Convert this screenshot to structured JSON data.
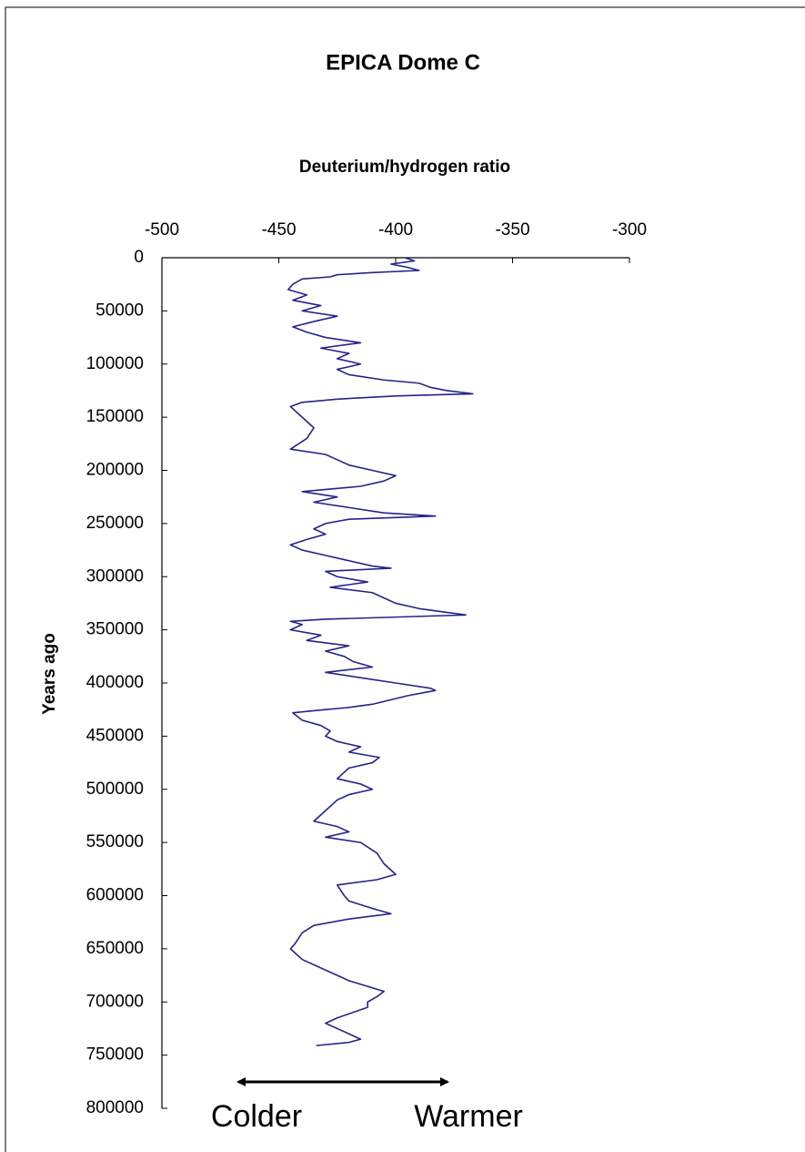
{
  "chart_data": {
    "type": "line",
    "orientation": "horizontal",
    "y_inverted": true,
    "title": "EPICA Dome C",
    "ylabel_top": "Deuterium/hydrogen ratio",
    "xlabel": "Years ago",
    "annotations": [
      "Colder",
      "Warmer"
    ],
    "ylim": [
      -500,
      -300
    ],
    "yticks": [
      -500,
      -450,
      -400,
      -350,
      -300
    ],
    "xlim": [
      0,
      800000
    ],
    "xticks": [
      0,
      50000,
      100000,
      150000,
      200000,
      250000,
      300000,
      350000,
      400000,
      450000,
      500000,
      550000,
      600000,
      650000,
      700000,
      750000,
      800000
    ],
    "x": [
      0,
      3000,
      6000,
      9000,
      12000,
      14000,
      16000,
      18000,
      20000,
      25000,
      30000,
      35000,
      40000,
      45000,
      50000,
      55000,
      60000,
      65000,
      70000,
      75000,
      80000,
      85000,
      90000,
      95000,
      100000,
      105000,
      110000,
      115000,
      118000,
      122000,
      125000,
      128000,
      130000,
      133000,
      136000,
      140000,
      150000,
      160000,
      170000,
      180000,
      185000,
      190000,
      195000,
      200000,
      205000,
      210000,
      215000,
      220000,
      225000,
      230000,
      235000,
      240000,
      243000,
      246000,
      250000,
      255000,
      260000,
      265000,
      270000,
      275000,
      280000,
      285000,
      290000,
      292000,
      295000,
      300000,
      305000,
      310000,
      315000,
      320000,
      325000,
      330000,
      333000,
      336000,
      340000,
      342000,
      345000,
      350000,
      355000,
      360000,
      365000,
      370000,
      375000,
      380000,
      385000,
      390000,
      395000,
      400000,
      405000,
      407000,
      412000,
      420000,
      423000,
      425000,
      428000,
      435000,
      440000,
      445000,
      450000,
      455000,
      460000,
      465000,
      470000,
      475000,
      480000,
      490000,
      495000,
      500000,
      505000,
      510000,
      520000,
      530000,
      535000,
      540000,
      545000,
      550000,
      560000,
      570000,
      580000,
      585000,
      590000,
      600000,
      605000,
      612000,
      617000,
      622000,
      628000,
      635000,
      645000,
      650000,
      660000,
      670000,
      680000,
      690000,
      695000,
      700000,
      705000,
      715000,
      720000,
      725000,
      730000,
      735000,
      738000,
      741000
    ],
    "series": [
      {
        "name": "Deuterium/hydrogen ratio",
        "color": "#23238c",
        "values": [
          -396,
          -392,
          -402,
          -395,
          -390,
          -410,
          -425,
          -428,
          -440,
          -444,
          -446,
          -438,
          -444,
          -432,
          -440,
          -425,
          -435,
          -444,
          -438,
          -430,
          -415,
          -432,
          -420,
          -425,
          -415,
          -425,
          -420,
          -405,
          -390,
          -385,
          -378,
          -367,
          -400,
          -425,
          -440,
          -445,
          -440,
          -435,
          -438,
          -445,
          -430,
          -425,
          -420,
          -410,
          -400,
          -405,
          -415,
          -440,
          -425,
          -435,
          -420,
          -405,
          -383,
          -420,
          -430,
          -435,
          -430,
          -438,
          -445,
          -440,
          -430,
          -420,
          -410,
          -402,
          -430,
          -425,
          -412,
          -428,
          -410,
          -405,
          -400,
          -390,
          -380,
          -370,
          -430,
          -445,
          -440,
          -445,
          -432,
          -438,
          -420,
          -430,
          -422,
          -418,
          -410,
          -430,
          -415,
          -400,
          -385,
          -383,
          -395,
          -410,
          -420,
          -430,
          -444,
          -440,
          -432,
          -428,
          -430,
          -425,
          -415,
          -420,
          -407,
          -410,
          -420,
          -425,
          -415,
          -410,
          -420,
          -425,
          -430,
          -435,
          -425,
          -420,
          -430,
          -415,
          -408,
          -405,
          -400,
          -408,
          -425,
          -422,
          -420,
          -410,
          -402,
          -420,
          -435,
          -440,
          -443,
          -445,
          -440,
          -430,
          -420,
          -405,
          -408,
          -412,
          -412,
          -425,
          -430,
          -425,
          -420,
          -415,
          -420,
          -434
        ]
      }
    ]
  }
}
